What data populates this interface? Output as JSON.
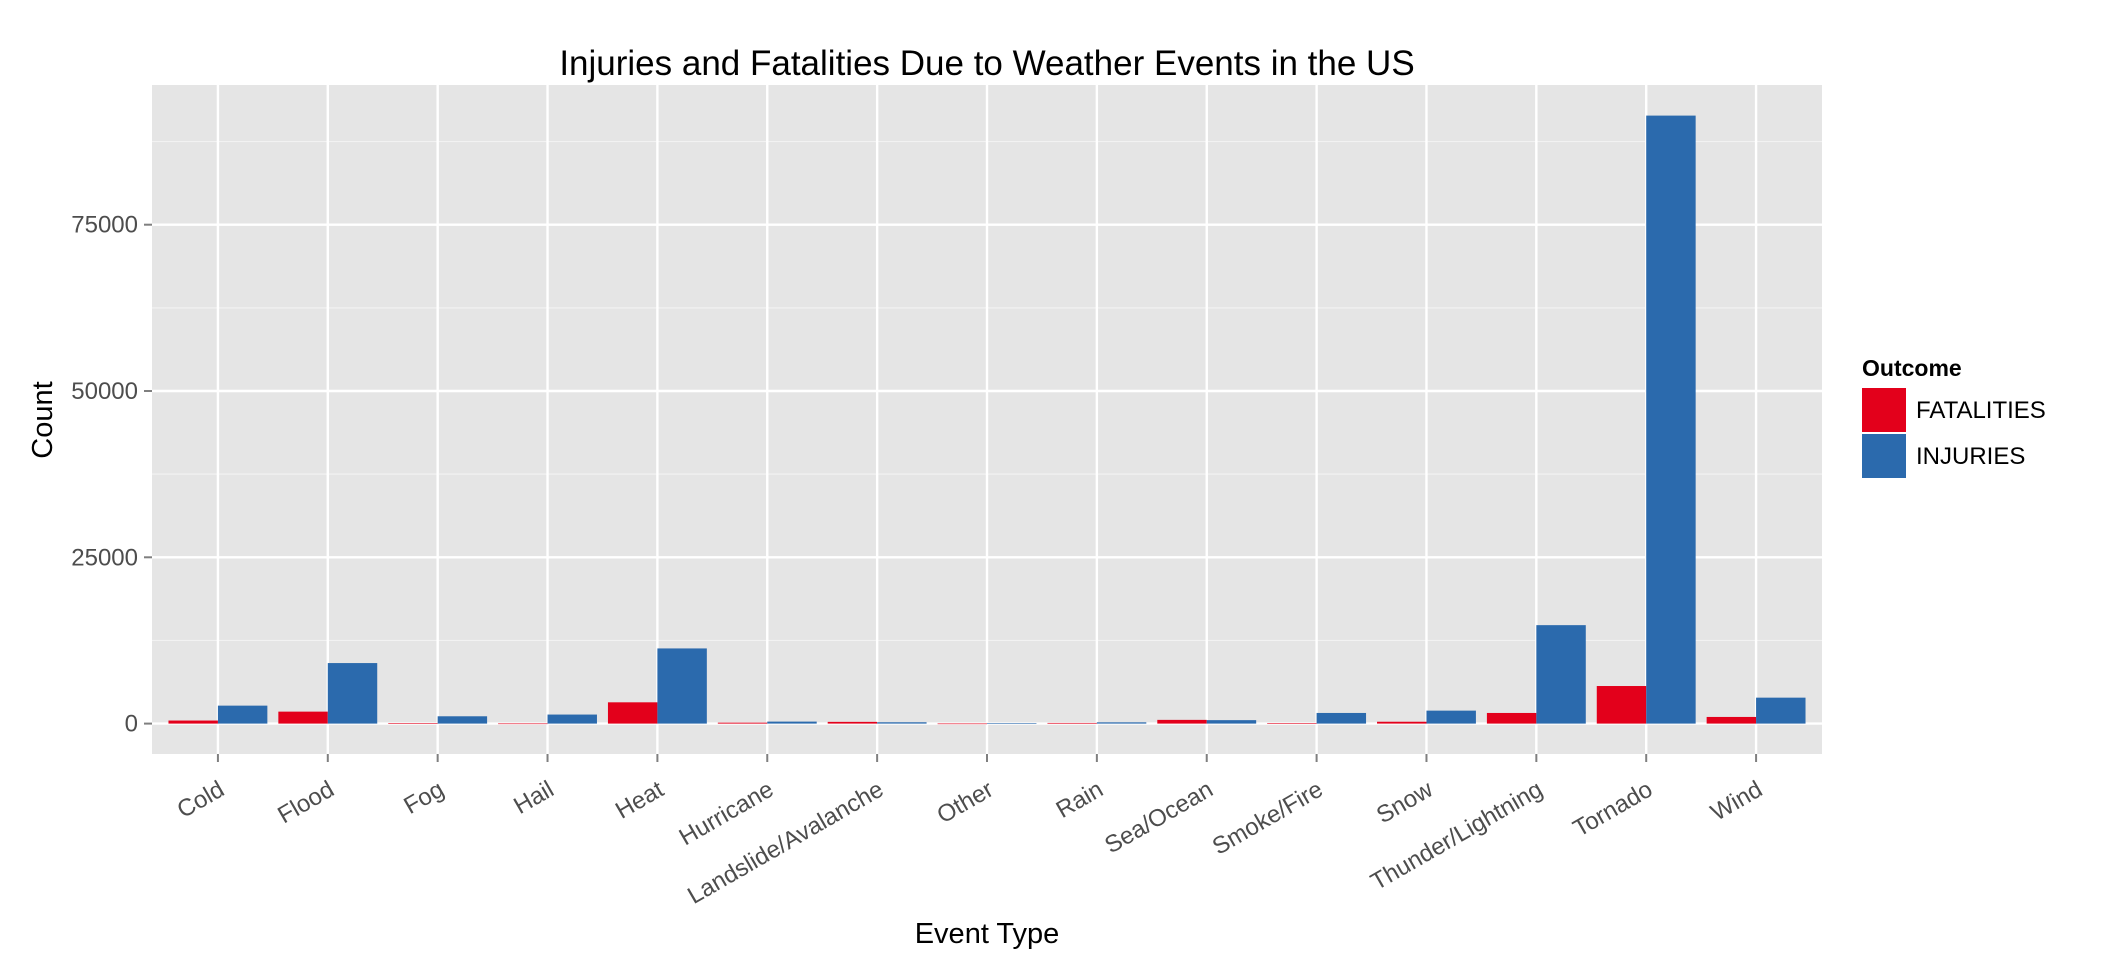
{
  "chart_data": {
    "type": "bar",
    "title": "Injuries and Fatalities Due to Weather Events in the US",
    "xlabel": "Event Type",
    "ylabel": "Count",
    "categories": [
      "Cold",
      "Flood",
      "Fog",
      "Hail",
      "Heat",
      "Hurricane",
      "Landslide/Avalanche",
      "Other",
      "Rain",
      "Sea/Ocean",
      "Smoke/Fire",
      "Snow",
      "Thunder/Lightning",
      "Tornado",
      "Wind"
    ],
    "series": [
      {
        "name": "FATALITIES",
        "color": "#e3001b",
        "values": [
          460,
          1800,
          80,
          15,
          3200,
          140,
          260,
          10,
          100,
          560,
          90,
          280,
          1600,
          5650,
          1000
        ]
      },
      {
        "name": "INJURIES",
        "color": "#2b6aad",
        "values": [
          2700,
          9100,
          1100,
          1360,
          11300,
          300,
          200,
          40,
          190,
          520,
          1600,
          1950,
          14800,
          91400,
          3900
        ]
      }
    ],
    "yticks": [
      0,
      25000,
      50000,
      75000
    ],
    "ytick_labels": [
      "0",
      "25000",
      "50000",
      "75000"
    ],
    "ylim": [
      -4570,
      96000
    ],
    "grid": true,
    "legend": {
      "title": "Outcome",
      "position": "right"
    }
  }
}
